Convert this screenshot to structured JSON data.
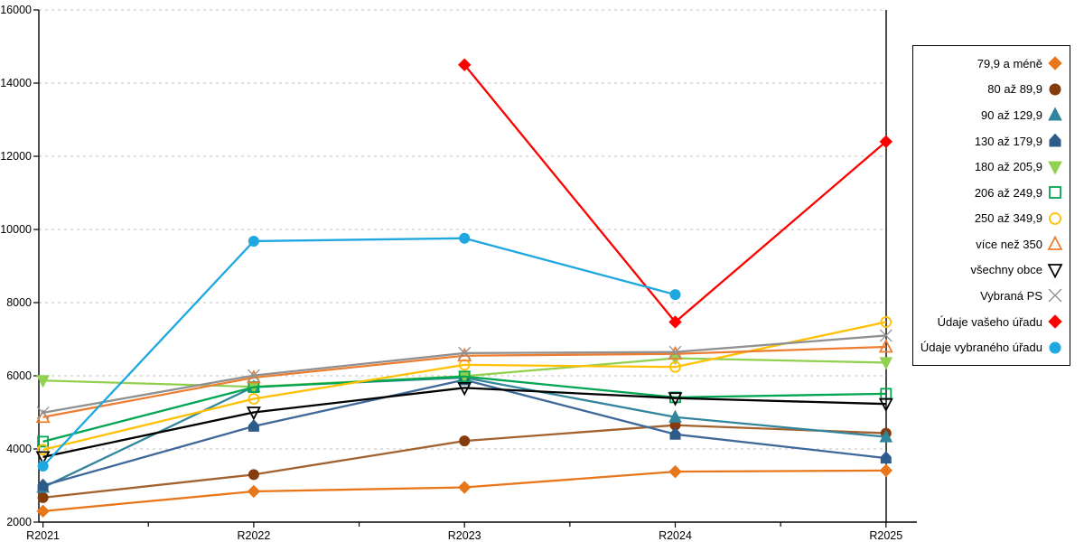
{
  "chart_data": {
    "type": "line",
    "title": "",
    "xlabel": "",
    "ylabel": "",
    "categories": [
      "R2021",
      "R2022",
      "R2023",
      "R2024",
      "R2025"
    ],
    "y_axis": {
      "min": 2000,
      "max": 16000,
      "step": 2000,
      "tick_labels": [
        "2000",
        "4000",
        "6000",
        "8000",
        "10000",
        "12000",
        "14000",
        "16000"
      ]
    },
    "grid": "horizontal-dashed",
    "grid_color": "#c2c2c2",
    "axis_color": "#000000",
    "legend_position": "right",
    "series": [
      {
        "name": "79,9 a méně",
        "marker": "diamond",
        "open": false,
        "color": "#e8761a",
        "values": [
          2300,
          2840,
          2950,
          3380,
          3410
        ]
      },
      {
        "name": "80 až 89,9",
        "marker": "circle",
        "open": false,
        "color": "#843c0c",
        "line_color": "#a2622f",
        "values": [
          2670,
          3300,
          4220,
          4650,
          4430
        ]
      },
      {
        "name": "90 až 129,9",
        "marker": "triangle-up",
        "open": false,
        "color": "#31859c",
        "values": [
          2950,
          5700,
          5950,
          4870,
          4330
        ]
      },
      {
        "name": "130 až 179,9",
        "marker": "pentagon",
        "open": false,
        "color": "#2e5c8a",
        "line_color": "#3f689a",
        "values": [
          3000,
          4620,
          5890,
          4400,
          3750
        ]
      },
      {
        "name": "180 až 205,9",
        "marker": "triangle-down",
        "open": false,
        "color": "#92d050",
        "values": [
          5870,
          5700,
          5990,
          6480,
          6360
        ]
      },
      {
        "name": "206 až 249,9",
        "marker": "square",
        "open": true,
        "color": "#00a651",
        "values": [
          4200,
          5690,
          5980,
          5410,
          5510
        ]
      },
      {
        "name": "250 až 349,9",
        "marker": "circle",
        "open": true,
        "color": "#ffc000",
        "values": [
          3980,
          5370,
          6300,
          6240,
          7470
        ]
      },
      {
        "name": "více než 350",
        "marker": "triangle-up",
        "open": true,
        "color": "#ed7d31",
        "values": [
          4870,
          5950,
          6550,
          6600,
          6790
        ]
      },
      {
        "name": "všechny obce",
        "marker": "triangle-down",
        "open": true,
        "color": "#000000",
        "values": [
          3780,
          5000,
          5670,
          5390,
          5230
        ]
      },
      {
        "name": "Vybraná PS",
        "marker": "x",
        "open": true,
        "color": "#909090",
        "values": [
          4990,
          6010,
          6620,
          6650,
          7100
        ]
      },
      {
        "name": "Údaje vašeho úřadu",
        "marker": "diamond",
        "open": false,
        "color": "#ff0000",
        "values": [
          null,
          null,
          14500,
          7470,
          12400
        ]
      },
      {
        "name": "Údaje vybraného úřadu",
        "marker": "circle",
        "open": false,
        "color": "#1fa8e0",
        "values": [
          3530,
          9680,
          9760,
          8220,
          null
        ]
      }
    ]
  }
}
